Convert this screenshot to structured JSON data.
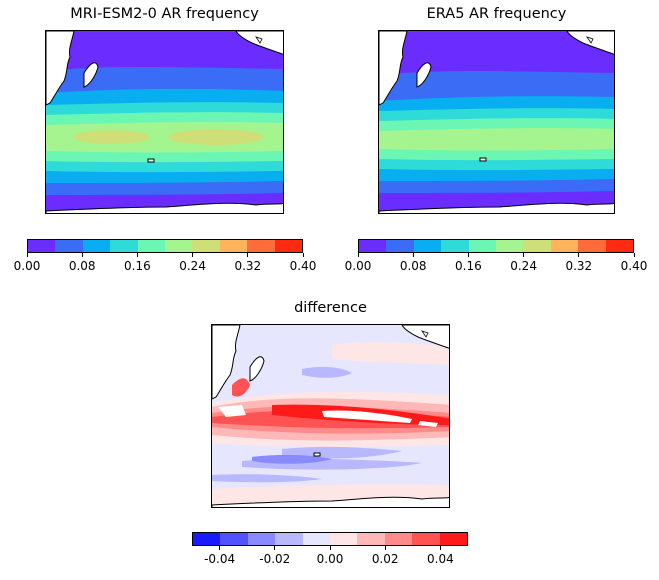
{
  "chart_data": [
    {
      "type": "heatmap",
      "title": "MRI-ESM2-0 AR frequency",
      "colorbar": {
        "ticks": [
          "0.00",
          "0.08",
          "0.16",
          "0.24",
          "0.32",
          "0.40"
        ],
        "levels": [
          0.0,
          0.04,
          0.08,
          0.12,
          0.16,
          0.2,
          0.24,
          0.28,
          0.32,
          0.36,
          0.4
        ],
        "colors": [
          "#6a2cff",
          "#3a6cf5",
          "#08aef0",
          "#2edbd8",
          "#6cf6b4",
          "#a4f590",
          "#cfdf78",
          "#ffb45c",
          "#ff6c3a",
          "#ff2a12"
        ]
      }
    },
    {
      "type": "heatmap",
      "title": "ERA5 AR frequency",
      "colorbar": {
        "ticks": [
          "0.00",
          "0.08",
          "0.16",
          "0.24",
          "0.32",
          "0.40"
        ],
        "levels": [
          0.0,
          0.04,
          0.08,
          0.12,
          0.16,
          0.2,
          0.24,
          0.28,
          0.32,
          0.36,
          0.4
        ],
        "colors": [
          "#6a2cff",
          "#3a6cf5",
          "#08aef0",
          "#2edbd8",
          "#6cf6b4",
          "#a4f590",
          "#cfdf78",
          "#ffb45c",
          "#ff6c3a",
          "#ff2a12"
        ]
      }
    },
    {
      "type": "heatmap",
      "title": "difference",
      "colorbar": {
        "ticks": [
          "-0.04",
          "-0.02",
          "0.00",
          "0.02",
          "0.04"
        ],
        "levels": [
          -0.05,
          -0.04,
          -0.03,
          -0.02,
          -0.01,
          0.0,
          0.01,
          0.02,
          0.03,
          0.04,
          0.05
        ],
        "colors": [
          "#1a1aff",
          "#5252ff",
          "#8a8aff",
          "#b8b8ff",
          "#e6e6ff",
          "#ffe6e6",
          "#ffb8b8",
          "#ff8a8a",
          "#ff5252",
          "#ff1a1a"
        ]
      }
    }
  ]
}
